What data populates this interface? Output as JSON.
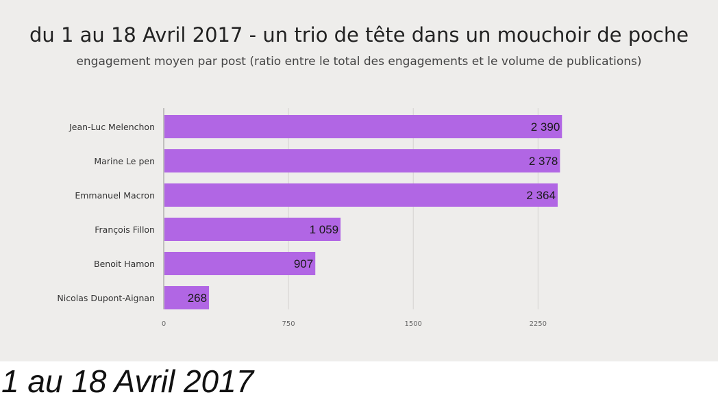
{
  "caption": "1 au 18 Avril 2017",
  "chart_data": {
    "type": "bar",
    "orientation": "horizontal",
    "title": "du 1 au 18 Avril 2017 - un trio de tête dans un mouchoir de poche",
    "subtitle": "engagement moyen par post (ratio entre le total des engagements et le volume de publications)",
    "categories": [
      "Jean-Luc Melenchon",
      "Marine Le pen",
      "Emmanuel Macron",
      "François Fillon",
      "Benoit Hamon",
      "Nicolas Dupont-Aignan"
    ],
    "values": [
      2390,
      2378,
      2364,
      1059,
      907,
      268
    ],
    "value_labels": [
      "2 390",
      "2 378",
      "2 364",
      "1 059",
      "907",
      "268"
    ],
    "x_ticks": [
      0,
      750,
      1500,
      2250
    ],
    "xlim": [
      0,
      2880
    ],
    "grid": true,
    "bar_color": "#b166e4",
    "xlabel": "",
    "ylabel": ""
  }
}
